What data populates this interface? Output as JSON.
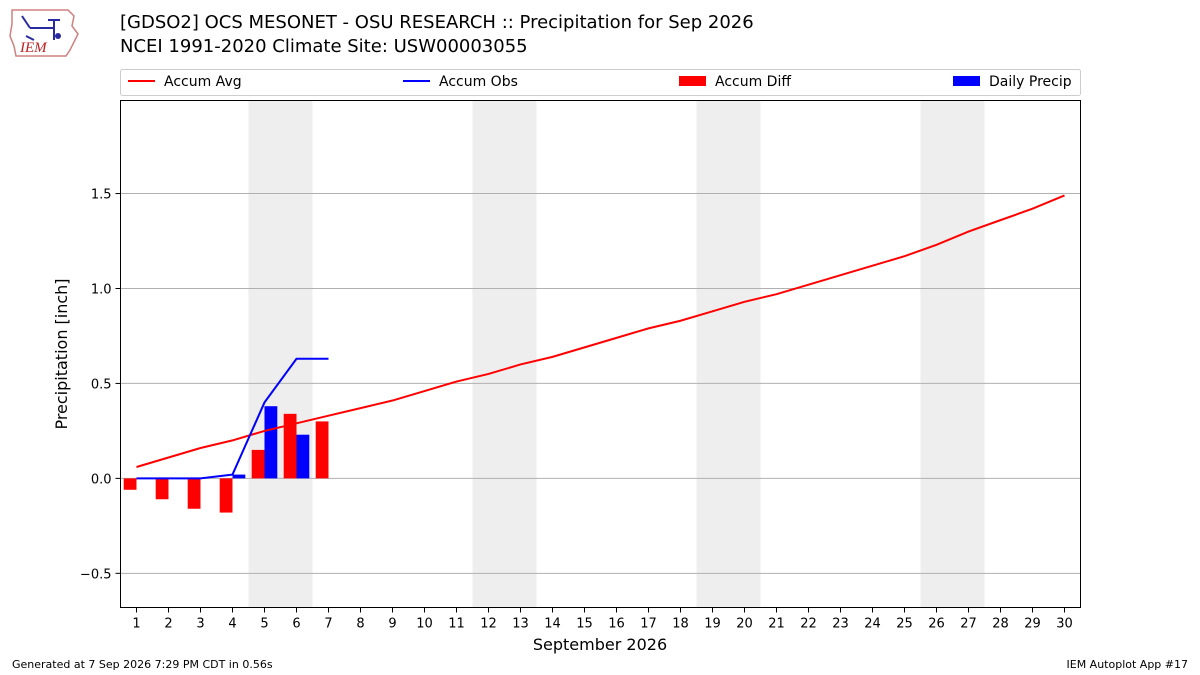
{
  "header": {
    "title_line1": "[GDSO2] OCS MESONET - OSU RESEARCH :: Precipitation for Sep 2026",
    "title_line2": "NCEI 1991-2020 Climate Site: USW00003055",
    "logo_text": "IEM"
  },
  "footer": {
    "generated": "Generated at 7 Sep 2026 7:29 PM CDT in 0.56s",
    "app": "IEM Autoplot App #17"
  },
  "colors": {
    "accum_avg": "#ff0000",
    "accum_obs": "#0000ff",
    "accum_diff": "#ff0000",
    "daily_precip": "#0000ff",
    "weekend_shade": "#eeeeee",
    "grid": "#b0b0b0"
  },
  "chart_data": {
    "type": "bar",
    "xlabel": "September 2026",
    "ylabel": "Precipitation [inch]",
    "ylim": [
      -0.68,
      1.99
    ],
    "xlim": [
      0.5,
      30.5
    ],
    "grid": "horizontal",
    "legend_placement": "top, above plot",
    "x": [
      1,
      2,
      3,
      4,
      5,
      6,
      7,
      8,
      9,
      10,
      11,
      12,
      13,
      14,
      15,
      16,
      17,
      18,
      19,
      20,
      21,
      22,
      23,
      24,
      25,
      26,
      27,
      28,
      29,
      30
    ],
    "x_tick_labels": [
      "1",
      "2",
      "3",
      "4",
      "5",
      "6",
      "7",
      "8",
      "9",
      "10",
      "11",
      "12",
      "13",
      "14",
      "15",
      "16",
      "17",
      "18",
      "19",
      "20",
      "21",
      "22",
      "23",
      "24",
      "25",
      "26",
      "27",
      "28",
      "29",
      "30"
    ],
    "y_ticks": [
      -0.5,
      0.0,
      0.5,
      1.0,
      1.5
    ],
    "y_tick_labels": [
      "−0.5",
      "0.0",
      "0.5",
      "1.0",
      "1.5"
    ],
    "weekend_shading": [
      [
        4.5,
        6.5
      ],
      [
        11.5,
        13.5
      ],
      [
        18.5,
        20.5
      ],
      [
        25.5,
        27.5
      ]
    ],
    "series": [
      {
        "name": "Accum Avg",
        "kind": "line",
        "x": [
          1,
          2,
          3,
          4,
          5,
          6,
          7,
          8,
          9,
          10,
          11,
          12,
          13,
          14,
          15,
          16,
          17,
          18,
          19,
          20,
          21,
          22,
          23,
          24,
          25,
          26,
          27,
          28,
          29,
          30
        ],
        "values": [
          0.06,
          0.11,
          0.16,
          0.2,
          0.25,
          0.29,
          0.33,
          0.37,
          0.41,
          0.46,
          0.51,
          0.55,
          0.6,
          0.64,
          0.69,
          0.74,
          0.79,
          0.83,
          0.88,
          0.93,
          0.97,
          1.02,
          1.07,
          1.12,
          1.17,
          1.23,
          1.3,
          1.36,
          1.42,
          1.49
        ]
      },
      {
        "name": "Accum Obs",
        "kind": "line",
        "x": [
          1,
          2,
          3,
          4,
          5,
          6,
          7
        ],
        "values": [
          0.0,
          0.0,
          0.0,
          0.02,
          0.4,
          0.63,
          0.63
        ]
      },
      {
        "name": "Accum Diff",
        "kind": "bar",
        "x": [
          1,
          2,
          3,
          4,
          5,
          6,
          7
        ],
        "values": [
          -0.06,
          -0.11,
          -0.16,
          -0.18,
          0.15,
          0.34,
          0.3
        ]
      },
      {
        "name": "Daily Precip",
        "kind": "bar",
        "x": [
          1,
          2,
          3,
          4,
          5,
          6,
          7
        ],
        "values": [
          0.0,
          0.0,
          0.0,
          0.02,
          0.38,
          0.23,
          0.0
        ]
      }
    ]
  }
}
